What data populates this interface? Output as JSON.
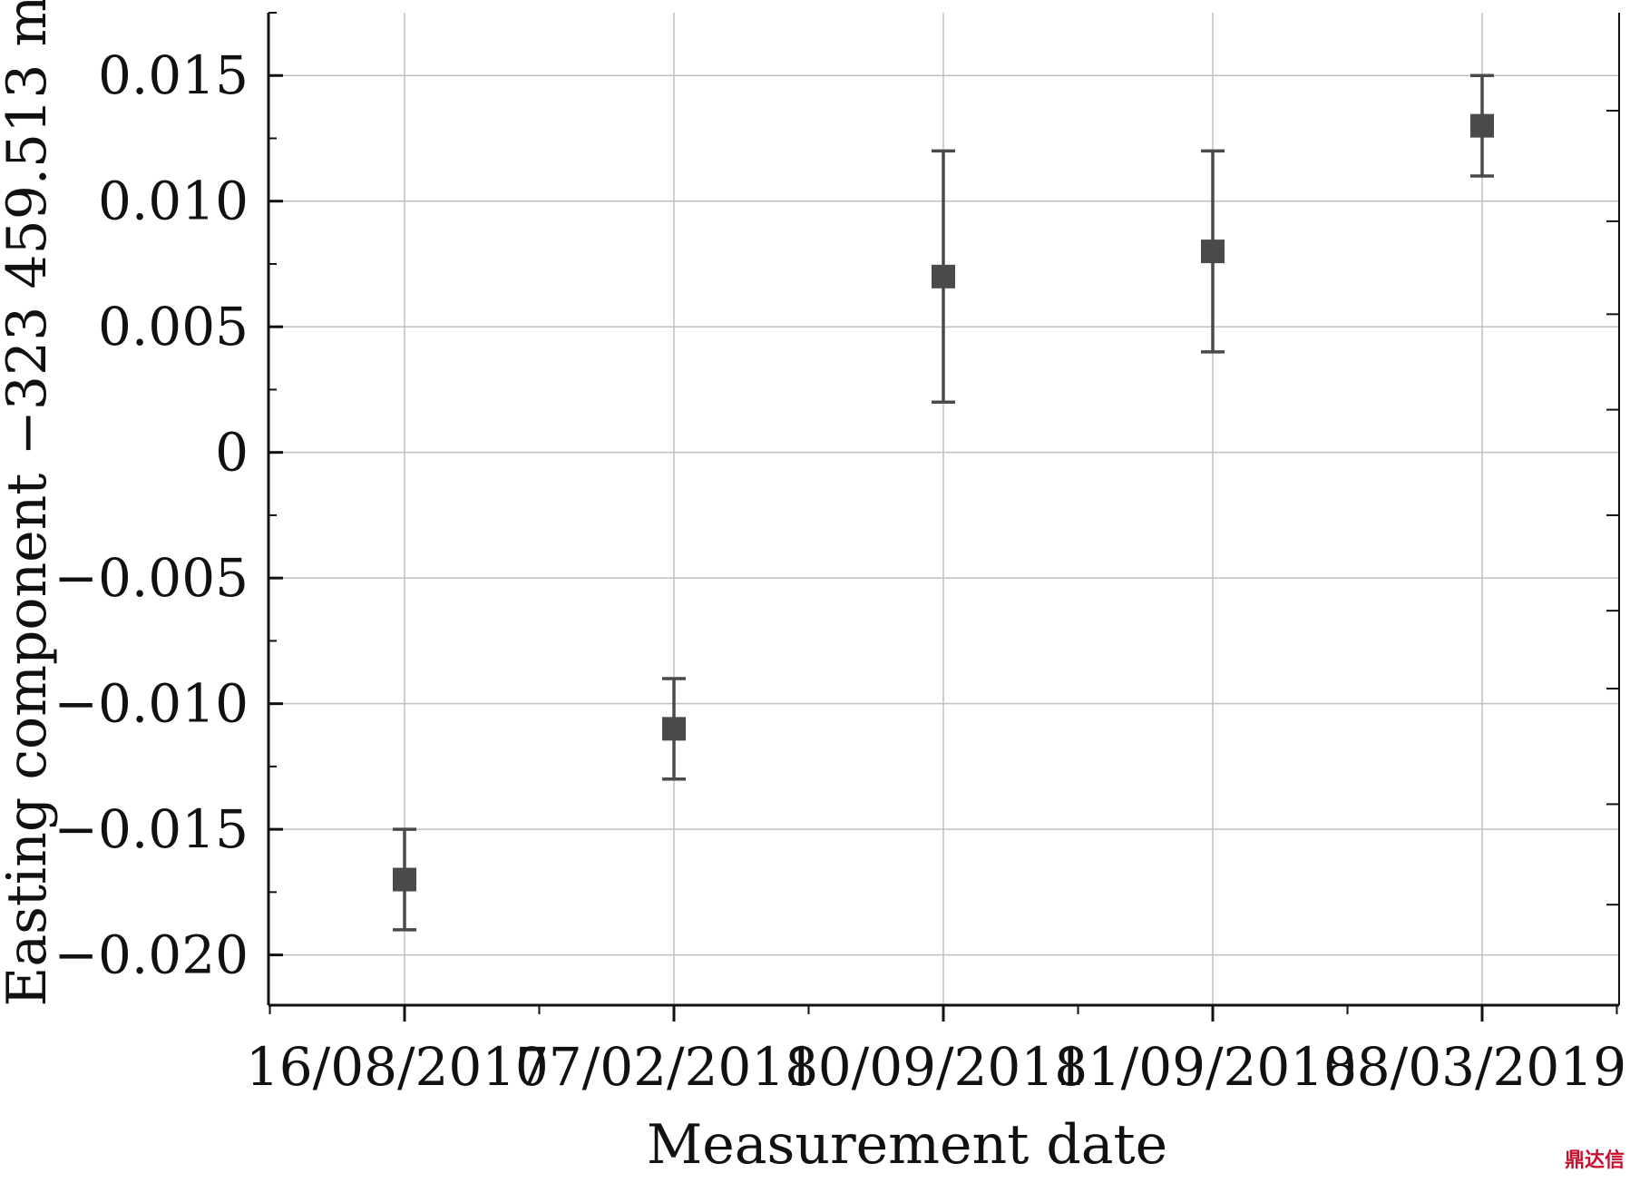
{
  "chart_data": {
    "type": "scatter",
    "title": "",
    "xlabel": "Measurement date",
    "ylabel": "Easting component −323 459.513 m",
    "categories": [
      "16/08/2017",
      "07/02/2018",
      "10/09/2018",
      "11/09/2018",
      "08/03/2019"
    ],
    "series": [
      {
        "values": [
          -0.017,
          -0.011,
          0.007,
          0.008,
          0.013
        ],
        "error_low": [
          -0.019,
          -0.013,
          0.002,
          0.004,
          0.011
        ],
        "error_high": [
          -0.015,
          -0.009,
          0.012,
          0.012,
          0.015
        ]
      }
    ],
    "ylim": [
      -0.022,
      0.0175
    ],
    "yticks": [
      -0.02,
      -0.015,
      -0.01,
      -0.005,
      0,
      0.005,
      0.01,
      0.015
    ],
    "ytick_labels": [
      "−0.020",
      "−0.015",
      "−0.010",
      "−0.005",
      "0",
      "0.005",
      "0.010",
      "0.015"
    ],
    "grid": true,
    "marker": "square",
    "colors": {
      "marker": "#4a4a4a",
      "grid": "#c0c0c0",
      "axis": "#111111"
    }
  },
  "watermark": "鼎达信"
}
